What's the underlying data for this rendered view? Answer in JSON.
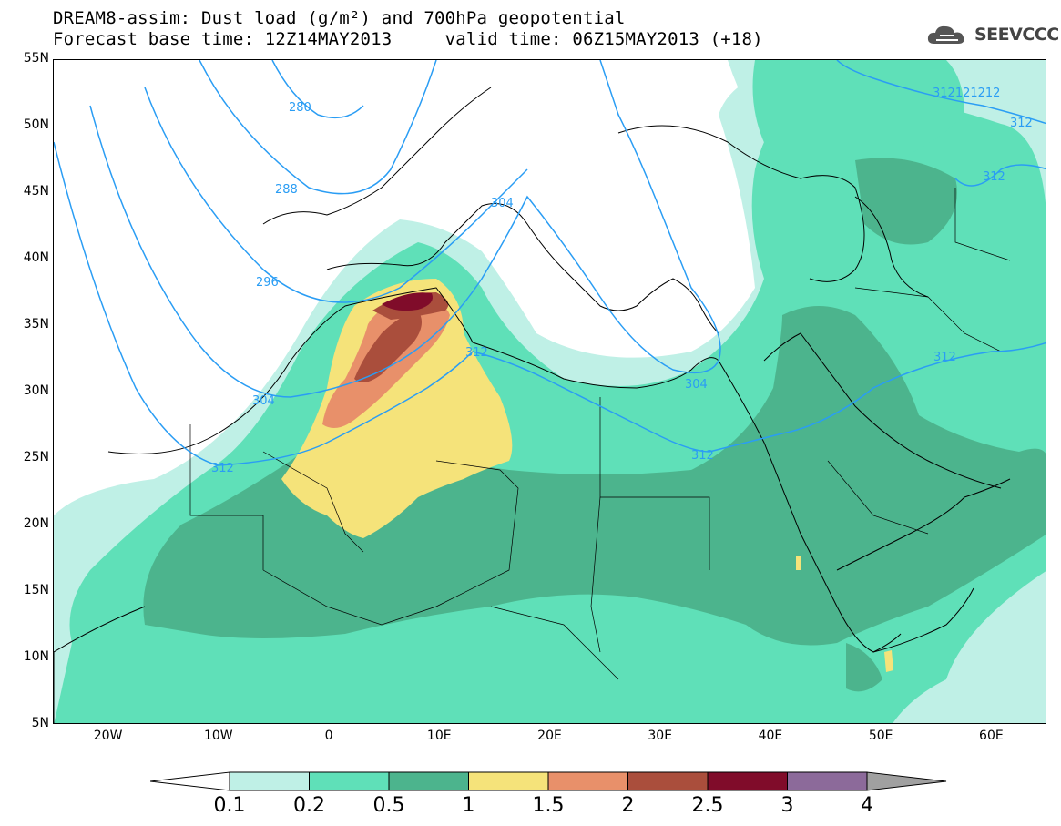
{
  "header": {
    "title": "DREAM8-assim: Dust load (g/m²) and 700hPa geopotential",
    "base_time_label": "Forecast base time: 12Z14MAY2013",
    "valid_time_label": "valid time: 06Z15MAY2013 (+18)"
  },
  "logo": {
    "text": "SEEVCCC",
    "icon": "cloud-icon"
  },
  "map": {
    "lon_range": [
      -25,
      65
    ],
    "lat_range": [
      5,
      55
    ],
    "lat_labels": [
      "55N",
      "50N",
      "45N",
      "40N",
      "35N",
      "30N",
      "25N",
      "20N",
      "15N",
      "10N",
      "5N"
    ],
    "lon_labels": [
      "20W",
      "10W",
      "0",
      "10E",
      "20E",
      "30E",
      "40E",
      "50E",
      "60E"
    ],
    "contour_labels": [
      "280",
      "288",
      "296",
      "304",
      "304",
      "304",
      "312",
      "312",
      "312",
      "312",
      "312121212",
      "312",
      "312"
    ]
  },
  "colorbar": {
    "labels": [
      "0.1",
      "0.2",
      "0.5",
      "1",
      "1.5",
      "2",
      "2.5",
      "3",
      "4"
    ],
    "colors": [
      "#bff0e6",
      "#5fe0b8",
      "#4cb48d",
      "#f5e37a",
      "#e8906a",
      "#aa4e3c",
      "#800c2a",
      "#8c6a9a",
      "#a0a0a0"
    ]
  },
  "colors": {
    "contour_line": "#2a9df4",
    "dust_0_1": "#bff0e6",
    "dust_0_2": "#5fe0b8",
    "dust_0_5": "#4cb48d",
    "dust_1": "#f5e37a",
    "dust_1_5": "#e8906a",
    "dust_2": "#aa4e3c",
    "dust_2_5": "#800c2a"
  }
}
